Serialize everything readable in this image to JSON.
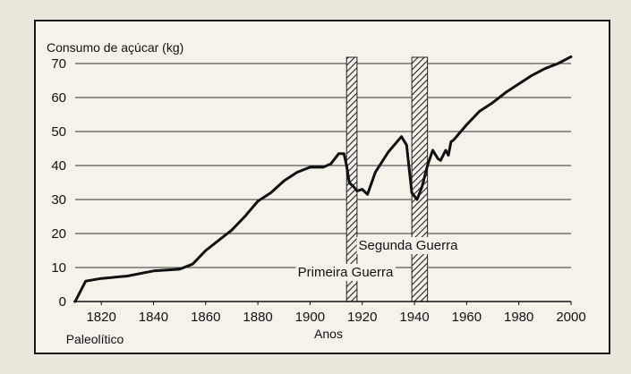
{
  "chart_data": {
    "type": "line",
    "ylabel": "Consumo de açúcar (kg)",
    "xlabel": "Anos",
    "x_origin_label": "Paleolítico",
    "ylim": [
      0,
      70
    ],
    "xlim": [
      1810,
      2000
    ],
    "yticks": [
      0,
      10,
      20,
      30,
      40,
      50,
      60,
      70
    ],
    "xticks": [
      1820,
      1840,
      1860,
      1880,
      1900,
      1920,
      1940,
      1960,
      1980,
      2000
    ],
    "grid": true,
    "annotations": [
      {
        "id": "primeira",
        "label": "Primeira Guerra",
        "start": 1914,
        "end": 1918
      },
      {
        "id": "segunda",
        "label": "Segunda Guerra",
        "start": 1939,
        "end": 1945
      }
    ],
    "series": [
      {
        "color": "#111111",
        "points": [
          [
            1810,
            0
          ],
          [
            1814,
            6
          ],
          [
            1820,
            6.8
          ],
          [
            1830,
            7.5
          ],
          [
            1840,
            9
          ],
          [
            1850,
            9.5
          ],
          [
            1855,
            11
          ],
          [
            1860,
            15
          ],
          [
            1865,
            18
          ],
          [
            1870,
            21
          ],
          [
            1875,
            25
          ],
          [
            1880,
            29.5
          ],
          [
            1885,
            32
          ],
          [
            1890,
            35.5
          ],
          [
            1895,
            38
          ],
          [
            1900,
            39.5
          ],
          [
            1905,
            39.5
          ],
          [
            1908,
            40.5
          ],
          [
            1911,
            43.5
          ],
          [
            1913,
            43.5
          ],
          [
            1914,
            40
          ],
          [
            1915,
            35
          ],
          [
            1917,
            33.5
          ],
          [
            1918,
            32.5
          ],
          [
            1920,
            33
          ],
          [
            1922,
            31.5
          ],
          [
            1925,
            38
          ],
          [
            1930,
            44
          ],
          [
            1935,
            48.5
          ],
          [
            1937,
            46
          ],
          [
            1939,
            32
          ],
          [
            1941,
            30
          ],
          [
            1943,
            34
          ],
          [
            1945,
            40
          ],
          [
            1947,
            44.5
          ],
          [
            1949,
            42
          ],
          [
            1950,
            41.5
          ],
          [
            1952,
            44.5
          ],
          [
            1953,
            43
          ],
          [
            1954,
            47
          ],
          [
            1955,
            47.5
          ],
          [
            1960,
            52
          ],
          [
            1965,
            56
          ],
          [
            1970,
            58.5
          ],
          [
            1975,
            61.5
          ],
          [
            1980,
            64
          ],
          [
            1985,
            66.5
          ],
          [
            1990,
            68.5
          ],
          [
            1995,
            70
          ],
          [
            2000,
            72
          ]
        ]
      }
    ]
  }
}
